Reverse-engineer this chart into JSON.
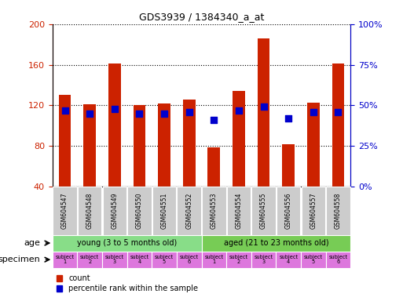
{
  "title": "GDS3939 / 1384340_a_at",
  "samples": [
    "GSM604547",
    "GSM604548",
    "GSM604549",
    "GSM604550",
    "GSM604551",
    "GSM604552",
    "GSM604553",
    "GSM604554",
    "GSM604555",
    "GSM604556",
    "GSM604557",
    "GSM604558"
  ],
  "counts": [
    130,
    121,
    161,
    120,
    122,
    126,
    79,
    134,
    186,
    82,
    123,
    161
  ],
  "percentiles": [
    47,
    45,
    48,
    45,
    45,
    46,
    41,
    47,
    49,
    42,
    46,
    46
  ],
  "ylim_left": [
    40,
    200
  ],
  "ylim_right": [
    0,
    100
  ],
  "yticks_left": [
    40,
    80,
    120,
    160,
    200
  ],
  "yticks_right": [
    0,
    25,
    50,
    75,
    100
  ],
  "bar_color": "#cc2200",
  "dot_color": "#0000cc",
  "age_groups": [
    {
      "label": "young (3 to 5 months old)",
      "start": 0,
      "end": 6,
      "color": "#88dd88"
    },
    {
      "label": "aged (21 to 23 months old)",
      "start": 6,
      "end": 12,
      "color": "#77cc55"
    }
  ],
  "specimen_labels": [
    "subject\n1",
    "subject\n2",
    "subject\n3",
    "subject\n4",
    "subject\n5",
    "subject\n6",
    "subject\n1",
    "subject\n2",
    "subject\n3",
    "subject\n4",
    "subject\n5",
    "subject\n6"
  ],
  "xticklabel_bg": "#cccccc",
  "left_axis_color": "#cc2200",
  "right_axis_color": "#0000cc",
  "dot_size": 28,
  "bar_width": 0.5,
  "spec_color": "#dd77dd"
}
